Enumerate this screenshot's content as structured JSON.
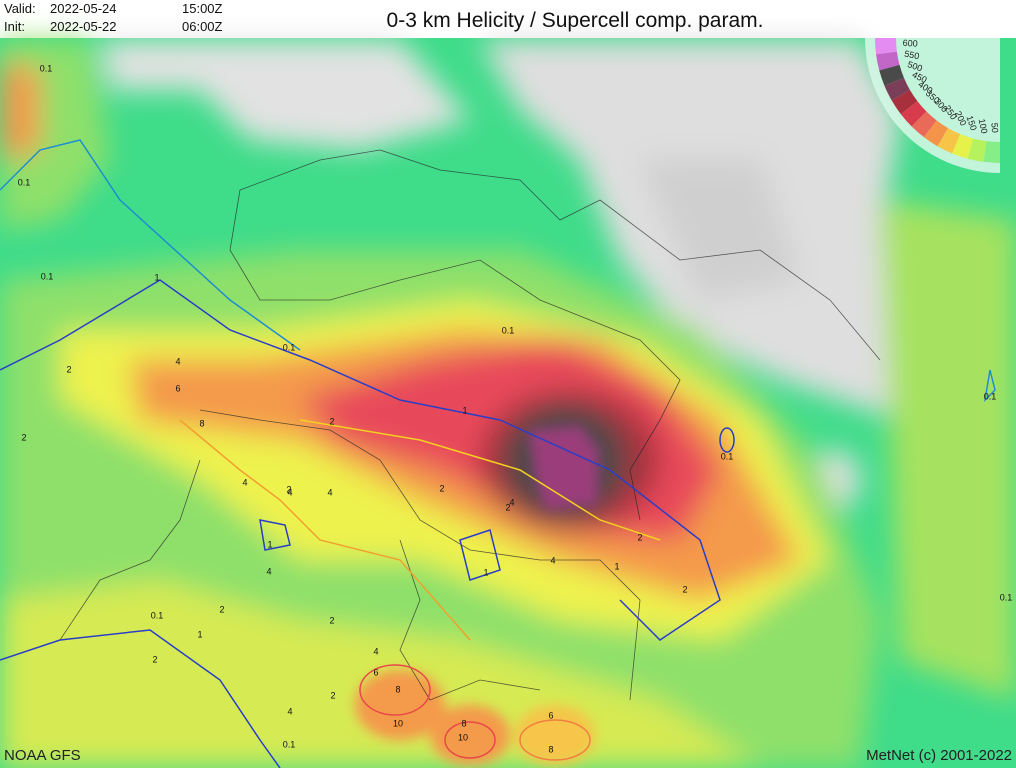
{
  "header": {
    "valid_label": "Valid:",
    "valid_date": "2022-05-24",
    "valid_time": "15:00Z",
    "init_label": "Init:",
    "init_date": "2022-05-22",
    "init_time": "06:00Z",
    "title": "0-3 km Helicity / Supercell comp. param."
  },
  "legend": {
    "values": [
      600,
      550,
      500,
      450,
      400,
      350,
      300,
      250,
      200,
      150,
      100,
      50
    ],
    "colors": [
      "#e48cf2",
      "#c266c8",
      "#4a4a4a",
      "#7a3e58",
      "#a8303c",
      "#d83c4c",
      "#ea6a5a",
      "#f4934a",
      "#f6c548",
      "#e6f24a",
      "#b6f25e",
      "#86ee86"
    ]
  },
  "contour_labels": [
    "0.1",
    "0.1",
    "0.1",
    "1",
    "0.1",
    "0.1",
    "4",
    "6",
    "8",
    "2",
    "2",
    "1",
    "2",
    "4",
    "4",
    "4",
    "2",
    "2",
    "4",
    "1",
    "2",
    "0.1",
    "4",
    "1",
    "4",
    "2",
    "2",
    "2",
    "1",
    "2",
    "0.1",
    "1",
    "0.1",
    "2",
    "4",
    "6",
    "8",
    "10",
    "8",
    "10",
    "6",
    "8",
    "4",
    "2",
    "0.1",
    "0.1"
  ],
  "footer": {
    "source": "NOAA GFS",
    "credit": "MetNet (c) 2001-2022"
  }
}
